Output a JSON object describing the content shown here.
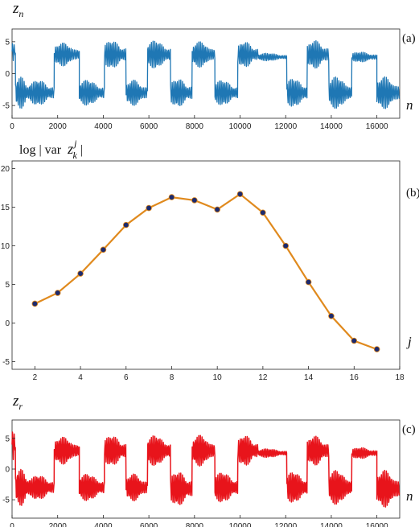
{
  "chart_data": [
    {
      "panel_label": "(a)",
      "type": "line",
      "ylabel_main": "z",
      "ylabel_sub": "n",
      "xlabel": "n",
      "xlim": [
        0,
        17000
      ],
      "ylim": [
        -7,
        7
      ],
      "xticks": [
        0,
        2000,
        4000,
        6000,
        8000,
        10000,
        12000,
        14000,
        16000
      ],
      "yticks": [
        -5,
        0,
        5
      ],
      "grid": false,
      "series": [
        {
          "color": "#1f77b4",
          "segments": [
            {
              "x0": 0,
              "x1": 150,
              "side": 1,
              "amp": 1.5,
              "lvl": 3.5
            },
            {
              "x0": 150,
              "x1": 800,
              "side": -1,
              "amp": 2.5,
              "lvl": 3.0
            },
            {
              "x0": 800,
              "x1": 1850,
              "side": -1,
              "amp": 2.0,
              "lvl": 3.0
            },
            {
              "x0": 1850,
              "x1": 2950,
              "side": 1,
              "amp": 1.8,
              "lvl": 3.0
            },
            {
              "x0": 2950,
              "x1": 4050,
              "side": -1,
              "amp": 2.0,
              "lvl": 3.0
            },
            {
              "x0": 4050,
              "x1": 5000,
              "side": 1,
              "amp": 2.2,
              "lvl": 3.0
            },
            {
              "x0": 5000,
              "x1": 5950,
              "side": -1,
              "amp": 2.0,
              "lvl": 3.0
            },
            {
              "x0": 5950,
              "x1": 6950,
              "side": 1,
              "amp": 2.2,
              "lvl": 3.0
            },
            {
              "x0": 6950,
              "x1": 7900,
              "side": -1,
              "amp": 2.2,
              "lvl": 3.0
            },
            {
              "x0": 7900,
              "x1": 8900,
              "side": 1,
              "amp": 2.0,
              "lvl": 3.0
            },
            {
              "x0": 8900,
              "x1": 9900,
              "side": -1,
              "amp": 2.0,
              "lvl": 3.0
            },
            {
              "x0": 9900,
              "x1": 10800,
              "side": 1,
              "amp": 2.0,
              "lvl": 3.0
            },
            {
              "x0": 10800,
              "x1": 12050,
              "side": 1,
              "amp": 0.6,
              "lvl": 2.6
            },
            {
              "x0": 12050,
              "x1": 12950,
              "side": -1,
              "amp": 2.3,
              "lvl": 3.0
            },
            {
              "x0": 12950,
              "x1": 13900,
              "side": 1,
              "amp": 2.2,
              "lvl": 3.0
            },
            {
              "x0": 13900,
              "x1": 14900,
              "side": -1,
              "amp": 2.5,
              "lvl": 3.0
            },
            {
              "x0": 14900,
              "x1": 16000,
              "side": 1,
              "amp": 0.8,
              "lvl": 2.6
            },
            {
              "x0": 16000,
              "x1": 17000,
              "side": -1,
              "amp": 2.5,
              "lvl": 3.0
            }
          ]
        }
      ]
    },
    {
      "panel_label": "(b)",
      "type": "line",
      "title_pre": "log | var",
      "title_var": "z",
      "title_sup": "j",
      "title_sub": "k",
      "title_post": "|",
      "xlabel": "j",
      "xlim": [
        1,
        18
      ],
      "ylim": [
        -6,
        21
      ],
      "xticks": [
        2,
        4,
        6,
        8,
        10,
        12,
        14,
        16,
        18
      ],
      "yticks": [
        -5,
        0,
        5,
        10,
        15,
        20
      ],
      "grid": false,
      "line_color": "#e08a1e",
      "marker_color": "#1c2a6e",
      "x": [
        2,
        3,
        4,
        5,
        6,
        7,
        8,
        9,
        10,
        11,
        12,
        13,
        14,
        15,
        16,
        17
      ],
      "y": [
        2.5,
        3.9,
        6.4,
        9.5,
        12.7,
        14.9,
        16.3,
        15.9,
        14.7,
        16.7,
        14.3,
        10.0,
        5.3,
        0.9,
        -2.3,
        -3.4
      ]
    },
    {
      "panel_label": "(c)",
      "type": "line",
      "ylabel_main": "z",
      "ylabel_sub": "r",
      "xlabel": "n",
      "xlim": [
        0,
        17000
      ],
      "ylim": [
        -8,
        8
      ],
      "xticks": [
        0,
        2000,
        4000,
        6000,
        8000,
        10000,
        12000,
        14000,
        16000
      ],
      "yticks": [
        -5,
        0,
        5
      ],
      "grid": false,
      "series": [
        {
          "color": "#e8141b",
          "segments": [
            {
              "x0": 0,
              "x1": 150,
              "side": 1,
              "amp": 2.5,
              "lvl": 4.0
            },
            {
              "x0": 150,
              "x1": 800,
              "side": -1,
              "amp": 3.0,
              "lvl": 3.0
            },
            {
              "x0": 800,
              "x1": 1850,
              "side": -1,
              "amp": 2.0,
              "lvl": 3.0
            },
            {
              "x0": 1850,
              "x1": 2950,
              "side": 1,
              "amp": 2.2,
              "lvl": 3.0
            },
            {
              "x0": 2950,
              "x1": 4050,
              "side": -1,
              "amp": 2.2,
              "lvl": 3.0
            },
            {
              "x0": 4050,
              "x1": 5000,
              "side": 1,
              "amp": 2.5,
              "lvl": 3.0
            },
            {
              "x0": 5000,
              "x1": 5950,
              "side": -1,
              "amp": 2.2,
              "lvl": 3.0
            },
            {
              "x0": 5950,
              "x1": 6950,
              "side": 1,
              "amp": 2.5,
              "lvl": 3.0
            },
            {
              "x0": 6950,
              "x1": 7900,
              "side": -1,
              "amp": 2.8,
              "lvl": 3.2
            },
            {
              "x0": 7900,
              "x1": 8900,
              "side": 1,
              "amp": 2.5,
              "lvl": 3.0
            },
            {
              "x0": 8900,
              "x1": 9900,
              "side": -1,
              "amp": 2.5,
              "lvl": 3.0
            },
            {
              "x0": 9900,
              "x1": 10800,
              "side": 1,
              "amp": 2.5,
              "lvl": 3.0
            },
            {
              "x0": 10800,
              "x1": 12050,
              "side": 1,
              "amp": 0.7,
              "lvl": 2.6
            },
            {
              "x0": 12050,
              "x1": 12950,
              "side": -1,
              "amp": 2.6,
              "lvl": 3.0
            },
            {
              "x0": 12950,
              "x1": 13900,
              "side": 1,
              "amp": 2.4,
              "lvl": 3.0
            },
            {
              "x0": 13900,
              "x1": 14900,
              "side": -1,
              "amp": 2.8,
              "lvl": 3.0
            },
            {
              "x0": 14900,
              "x1": 16000,
              "side": 1,
              "amp": 0.9,
              "lvl": 2.6
            },
            {
              "x0": 16000,
              "x1": 17000,
              "side": -1,
              "amp": 3.0,
              "lvl": 3.2
            }
          ]
        }
      ]
    }
  ]
}
